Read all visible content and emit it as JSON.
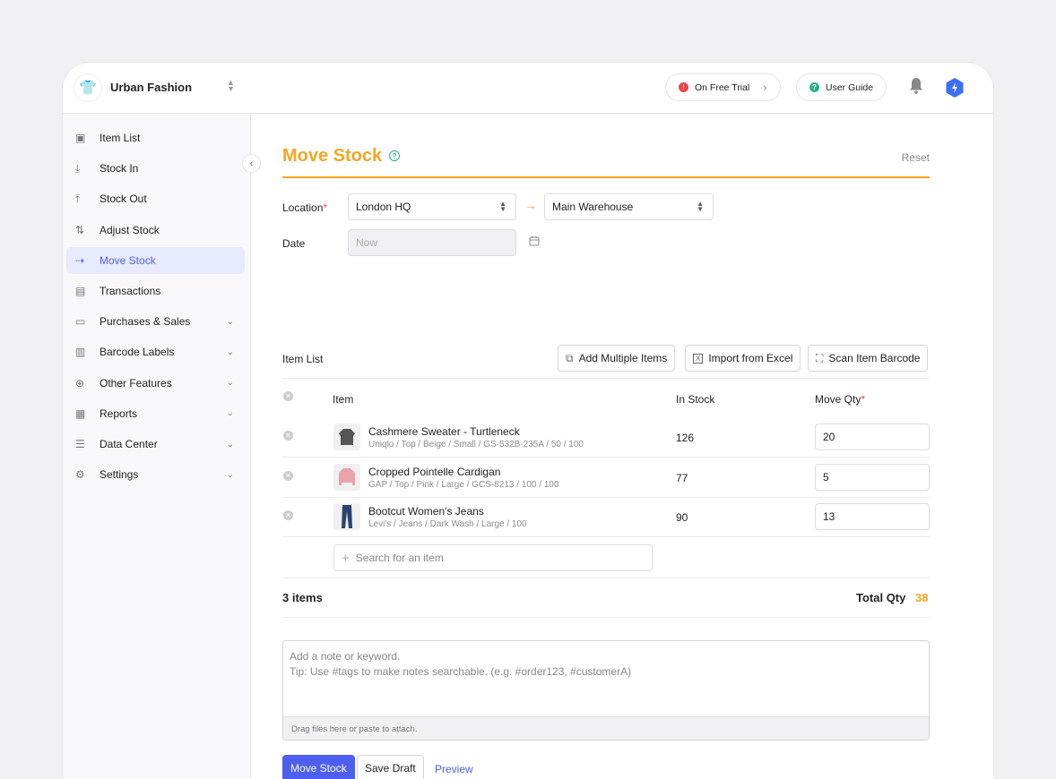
{
  "header": {
    "brand": "Urban Fashion",
    "trial": "On Free Trial",
    "guide": "User Guide"
  },
  "sidebar": {
    "items": [
      {
        "label": "Item List",
        "icon": "box-icon"
      },
      {
        "label": "Stock In",
        "icon": "arrow-down-icon"
      },
      {
        "label": "Stock Out",
        "icon": "arrow-up-icon"
      },
      {
        "label": "Adjust Stock",
        "icon": "swap-icon"
      },
      {
        "label": "Move Stock",
        "icon": "arrow-right-icon",
        "active": true
      },
      {
        "label": "Transactions",
        "icon": "transactions-icon"
      },
      {
        "label": "Purchases & Sales",
        "icon": "document-icon",
        "expandable": true
      },
      {
        "label": "Barcode Labels",
        "icon": "barcode-icon",
        "expandable": true
      },
      {
        "label": "Other Features",
        "icon": "plus-circle-icon",
        "expandable": true
      },
      {
        "label": "Reports",
        "icon": "chart-icon",
        "expandable": true
      },
      {
        "label": "Data Center",
        "icon": "database-icon",
        "expandable": true
      },
      {
        "label": "Settings",
        "icon": "gear-icon",
        "expandable": true
      }
    ]
  },
  "page": {
    "title": "Move Stock",
    "reset": "Reset",
    "location_label": "Location",
    "required": "*",
    "from": "London HQ",
    "to": "Main Warehouse",
    "date_label": "Date",
    "date_placeholder": "Now",
    "item_list_label": "Item List",
    "add_multiple": "Add Multiple Items",
    "import_excel": "Import from Excel",
    "scan_barcode": "Scan Item Barcode",
    "columns": {
      "item": "Item",
      "in_stock": "In Stock",
      "move_qty": "Move Qty"
    },
    "items": [
      {
        "name": "Cashmere Sweater - Turtleneck",
        "meta": "Uniqlo / Top / Beige / Small / GS-532B-235A / 50 / 100",
        "in_stock": "126",
        "qty": "20"
      },
      {
        "name": "Cropped Pointelle Cardigan",
        "meta": "GAP / Top / Pink / Large / GCS-8213 / 100 / 100",
        "in_stock": "77",
        "qty": "5"
      },
      {
        "name": "Bootcut Women's Jeans",
        "meta": "Levi's / Jeans / Dark Wash / Large / 100",
        "in_stock": "90",
        "qty": "13"
      }
    ],
    "search_placeholder": "Search for an item",
    "count": "3 items",
    "total_label": "Total Qty",
    "total": "38",
    "note_placeholder": "Add a note or keyword.",
    "note_tip": "Tip: Use #tags to make notes searchable. (e.g. #order123, #customerA)",
    "attach": "Drag files here or paste to attach.",
    "submit": "Move Stock",
    "save_draft": "Save Draft",
    "preview": "Preview"
  },
  "colors": {
    "accent": "#f5a623",
    "primary": "#4e5ff0",
    "help": "#2bb08a",
    "alert": "#ef4444"
  }
}
